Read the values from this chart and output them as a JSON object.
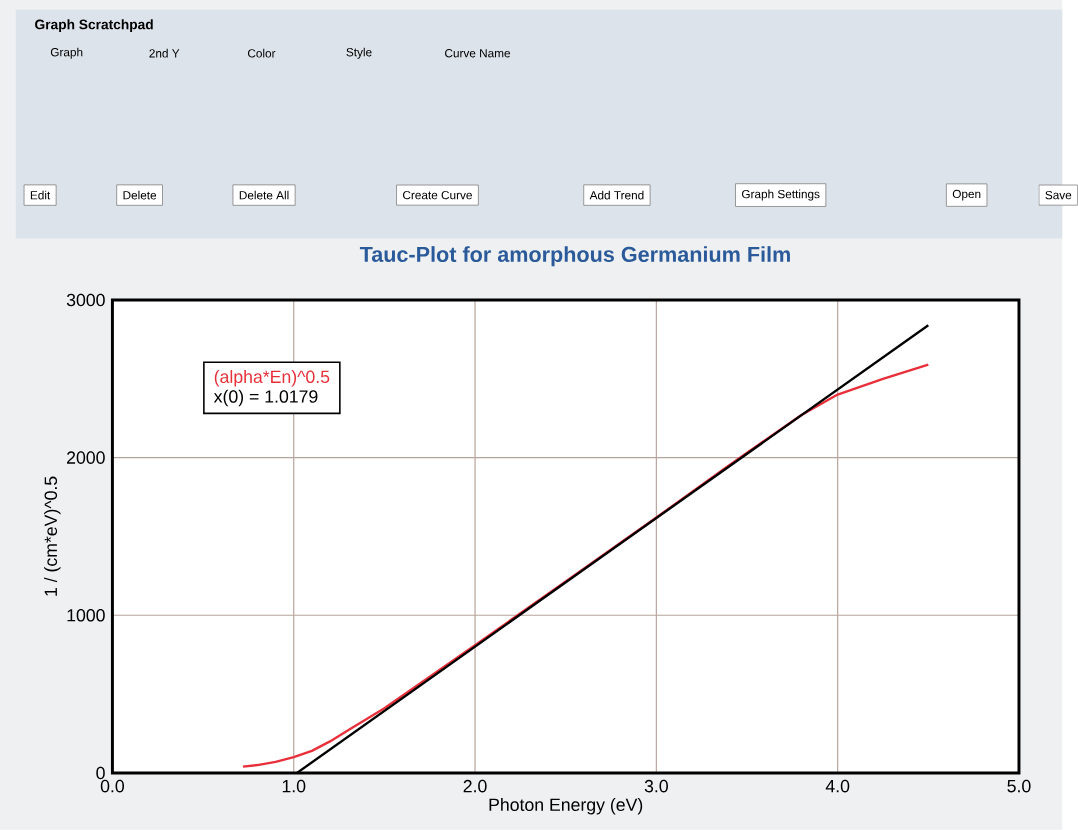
{
  "chart_data": {
    "type": "line",
    "title": "Tauc-Plot for amorphous Germanium Film",
    "xlabel": "Photon Energy (eV)",
    "ylabel": "1 / (cm*eV)^0.5",
    "xlim": [
      0,
      5
    ],
    "ylim": [
      0,
      3000
    ],
    "xticks": [
      {
        "value": 0,
        "label": "0.0"
      },
      {
        "value": 1,
        "label": "1.0"
      },
      {
        "value": 2,
        "label": "2.0"
      },
      {
        "value": 3,
        "label": "3.0"
      },
      {
        "value": 4,
        "label": "4.0"
      },
      {
        "value": 5,
        "label": "5.0"
      }
    ],
    "yticks": [
      0,
      1000,
      2000,
      3000
    ],
    "grid": true,
    "legend": "top left",
    "marker": "none",
    "line_style": "solid",
    "series": [
      {
        "name": "(alpha*En)^0.5",
        "color": "#e8303a",
        "x": [
          0.72,
          0.8,
          0.9,
          1.0,
          1.1,
          1.2,
          1.3,
          1.4,
          1.5,
          2.0,
          2.5,
          3.0,
          3.4,
          3.6,
          3.8,
          4.0,
          4.25,
          4.5
        ],
        "values": [
          40,
          50,
          70,
          100,
          140,
          200,
          270,
          340,
          410,
          810,
          1215,
          1620,
          1950,
          2110,
          2270,
          2400,
          2500,
          2590
        ]
      },
      {
        "name": "x(0) = 1.0179",
        "color": "#000000",
        "x": [
          1.0179,
          4.5
        ],
        "values": [
          0,
          2840
        ]
      }
    ],
    "annotations": [
      "Graph Scratchpad",
      "Graph",
      "2nd Y",
      "Color",
      "Style",
      "Curve Name",
      "Edit",
      "Delete",
      "Delete All",
      "Create Curve",
      "Add Trend",
      "Graph Settings",
      "Open",
      "Save"
    ]
  }
}
